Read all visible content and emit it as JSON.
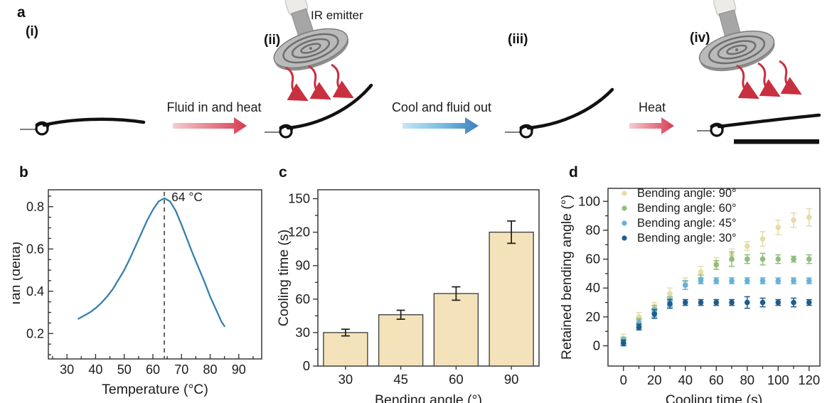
{
  "panels": [
    "a",
    "b",
    "c",
    "d"
  ],
  "panel_a": {
    "steps": [
      "(i)",
      "(ii)",
      "(iii)",
      "(iv)"
    ],
    "ir_emitter_label": "IR emitter",
    "process_arrows": [
      {
        "label": "Fluid in and heat",
        "type": "heat"
      },
      {
        "label": "Cool and fluid out",
        "type": "cool"
      },
      {
        "label": "Heat",
        "type": "heat"
      }
    ],
    "colors": {
      "heat_arrow": "#d63b50",
      "cool_arrow": "#3e7fbe"
    }
  },
  "chart_data": [
    {
      "panel": "b",
      "type": "line",
      "xlabel": "Temperature (°C)",
      "ylabel": "Tan (delta)",
      "xlim": [
        23.5,
        98
      ],
      "ylim": [
        0.08,
        0.88
      ],
      "xticks": [
        30,
        40,
        50,
        60,
        70,
        80,
        90
      ],
      "yticks": [
        0.2,
        0.4,
        0.6,
        0.8
      ],
      "x": [
        34,
        36,
        38,
        40,
        42,
        44,
        46,
        48,
        50,
        52,
        54,
        56,
        58,
        60,
        62,
        64,
        66,
        68,
        70,
        72,
        74,
        76,
        78,
        80,
        82,
        84,
        85
      ],
      "y": [
        0.27,
        0.285,
        0.3,
        0.32,
        0.345,
        0.375,
        0.41,
        0.455,
        0.5,
        0.555,
        0.615,
        0.675,
        0.735,
        0.785,
        0.825,
        0.84,
        0.825,
        0.78,
        0.715,
        0.645,
        0.575,
        0.51,
        0.445,
        0.375,
        0.315,
        0.255,
        0.235
      ],
      "line_color": "#3580ad",
      "annotation": {
        "text": "64 °C",
        "x": 64,
        "peak_y": 0.84
      },
      "grid": false,
      "ticks": "in",
      "minor_x_step": 5,
      "minor_y_step": 0.05
    },
    {
      "panel": "c",
      "type": "bar",
      "xlabel": "Bending angle (°)",
      "ylabel": "Cooling time (s)",
      "categories": [
        "30",
        "45",
        "60",
        "90"
      ],
      "values": [
        30,
        46,
        65,
        120
      ],
      "errors": [
        3,
        4,
        6,
        10
      ],
      "ylim": [
        0,
        158
      ],
      "yticks": [
        0,
        30,
        60,
        90,
        120,
        150
      ],
      "bar_color": "#f4e3ba",
      "bar_edge": "#454545",
      "error_color": "#1a1a1a",
      "grid": false,
      "ticks": "out",
      "minor_y_step": 15
    },
    {
      "panel": "d",
      "type": "scatter",
      "xlabel": "Cooling time (s)",
      "ylabel": "Retained bending angle (°)",
      "xlim": [
        -10,
        127
      ],
      "ylim": [
        -14,
        109
      ],
      "xticks": [
        0,
        20,
        40,
        60,
        80,
        100,
        120
      ],
      "yticks": [
        0,
        20,
        40,
        60,
        80,
        100
      ],
      "x": [
        0,
        10,
        20,
        30,
        40,
        50,
        60,
        70,
        80,
        90,
        100,
        110,
        120
      ],
      "series": [
        {
          "name": "Bending angle: 90°",
          "color": "#e9daa7",
          "values": [
            5,
            20,
            27,
            36,
            44,
            51,
            57,
            63,
            69,
            74,
            82,
            87,
            89
          ],
          "errors": [
            3,
            3,
            3,
            4,
            3,
            4,
            4,
            4,
            3,
            5,
            5,
            5,
            6
          ]
        },
        {
          "name": "Bending angle: 60°",
          "color": "#8fbe7d",
          "values": [
            4,
            16,
            25,
            31,
            42,
            46,
            56,
            60,
            60,
            60,
            60,
            60,
            60
          ],
          "errors": [
            2,
            3,
            3,
            3,
            3,
            3,
            3,
            5,
            3,
            4,
            3,
            2,
            3
          ]
        },
        {
          "name": "Bending angle: 45°",
          "color": "#66b1d8",
          "values": [
            3,
            15,
            23,
            30,
            42,
            45,
            45,
            45,
            45,
            45,
            45,
            45,
            45
          ],
          "errors": [
            2,
            3,
            3,
            3,
            3,
            2,
            2,
            2,
            2,
            2,
            2,
            2,
            2
          ]
        },
        {
          "name": "Bending angle: 30°",
          "color": "#1f5c8d",
          "values": [
            2,
            13,
            22,
            29,
            30,
            30,
            30,
            30,
            30,
            30,
            30,
            30,
            30
          ],
          "errors": [
            2,
            2,
            3,
            3,
            2,
            2,
            2,
            2,
            4,
            3,
            2,
            3,
            2
          ]
        }
      ],
      "legend_position": "top-left",
      "grid": false,
      "ticks": "out",
      "minor_x_step": 10,
      "minor_y_step": 10
    }
  ]
}
